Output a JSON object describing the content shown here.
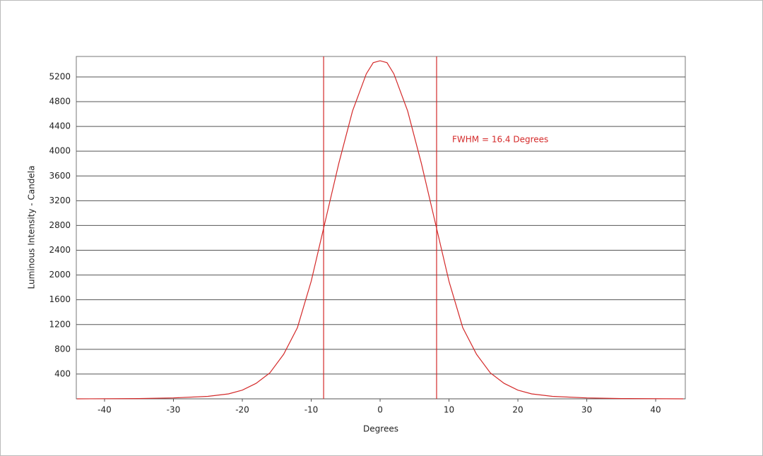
{
  "chart_data": {
    "type": "line",
    "xlabel": "Degrees",
    "ylabel": "Luminous Intensity - Candela",
    "annotation": "FWHM = 16.4 Degrees",
    "color": "#d42a2a",
    "x": [
      -44,
      -35,
      -30,
      -25,
      -22,
      -20,
      -18,
      -16,
      -14,
      -12,
      -10,
      -8,
      -6,
      -4,
      -2,
      -1,
      0,
      1,
      2,
      4,
      6,
      8,
      10,
      12,
      14,
      16,
      18,
      20,
      22,
      25,
      30,
      35,
      44
    ],
    "values": [
      0,
      5,
      15,
      40,
      80,
      140,
      250,
      420,
      720,
      1150,
      1900,
      2850,
      3800,
      4650,
      5250,
      5430,
      5460,
      5430,
      5250,
      4650,
      3800,
      2850,
      1900,
      1150,
      720,
      420,
      250,
      140,
      80,
      40,
      15,
      5,
      0
    ],
    "vlines": [
      -8.2,
      8.2
    ],
    "xlim": [
      -44.1,
      44.3
    ],
    "ylim": [
      0,
      5530
    ],
    "xticks": [
      -40,
      -30,
      -20,
      -10,
      0,
      10,
      20,
      30,
      40
    ],
    "yticks": [
      400,
      800,
      1200,
      1600,
      2000,
      2400,
      2800,
      3200,
      3600,
      4000,
      4400,
      4800,
      5200
    ],
    "grid": true
  }
}
